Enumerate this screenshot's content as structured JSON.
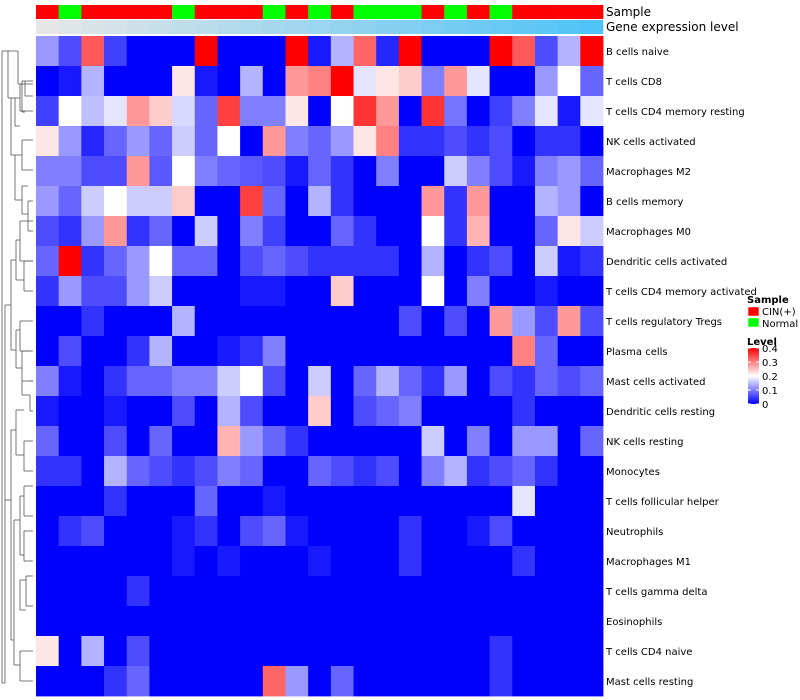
{
  "chart_data": {
    "type": "heatmap",
    "title": "",
    "colors": {
      "low": "#0000ff",
      "mid": "#ffffff",
      "high": "#ff0000",
      "cin": "#ff0000",
      "normal": "#00ff00",
      "gene_level": "#4fc3f7"
    },
    "annotation_rows": [
      "Sample",
      "Gene expression level"
    ],
    "rows": [
      "B cells naive",
      "T cells CD8",
      "T cells CD4 memory resting",
      "NK cells activated",
      "Macrophages M2",
      "B cells memory",
      "Macrophages M0",
      "Dendritic cells activated",
      "T cells CD4 memory activated",
      "T cells regulatory  Tregs",
      "Plasma cells",
      "Mast cells activated",
      "Dendritic cells resting",
      "NK cells resting",
      "Monocytes",
      "T cells follicular helper",
      "Neutrophils",
      "Macrophages M1",
      "T cells gamma delta",
      "Eosinophils",
      "T cells CD4 naive",
      "Mast cells resting"
    ],
    "sample_groups": [
      "CIN(+)",
      "Normal",
      "CIN(+)",
      "CIN(+)",
      "CIN(+)",
      "CIN(+)",
      "Normal",
      "CIN(+)",
      "CIN(+)",
      "CIN(+)",
      "Normal",
      "CIN(+)",
      "Normal",
      "CIN(+)",
      "Normal",
      "Normal",
      "Normal",
      "CIN(+)",
      "Normal",
      "CIN(+)",
      "Normal",
      "CIN(+)",
      "CIN(+)",
      "CIN(+)",
      "CIN(+)"
    ],
    "values": [
      [
        0.12,
        0.06,
        0.33,
        0.05,
        0,
        0,
        0,
        0.4,
        0,
        0,
        0,
        0.4,
        0.02,
        0.14,
        0.32,
        0.03,
        0.4,
        0,
        0,
        0,
        0.4,
        0.33,
        0.06,
        0.14,
        0.4
      ],
      [
        0,
        0.02,
        0.14,
        0,
        0,
        0,
        0.22,
        0.02,
        0,
        0.14,
        0,
        0.28,
        0.3,
        0.4,
        0.18,
        0.22,
        0.24,
        0.1,
        0.28,
        0.18,
        0,
        0,
        0.12,
        0.2,
        0.08
      ],
      [
        0.05,
        0.2,
        0.15,
        0.18,
        0.28,
        0.24,
        0.17,
        0.08,
        0.35,
        0.1,
        0.1,
        0.22,
        0,
        0.2,
        0.36,
        0.28,
        0,
        0.36,
        0.09,
        0,
        0.05,
        0.1,
        0.18,
        0.02,
        0.18
      ],
      [
        0.22,
        0.12,
        0.03,
        0.08,
        0.12,
        0.08,
        0.16,
        0.08,
        0.2,
        0,
        0.28,
        0.1,
        0.08,
        0.12,
        0.22,
        0.3,
        0.04,
        0.04,
        0.06,
        0.04,
        0.06,
        0,
        0.04,
        0.04,
        0
      ],
      [
        0.1,
        0.1,
        0.06,
        0.06,
        0.28,
        0.07,
        0.2,
        0.1,
        0.08,
        0.07,
        0.06,
        0.02,
        0.08,
        0.04,
        0,
        0.1,
        0,
        0,
        0.16,
        0.1,
        0.06,
        0.02,
        0.1,
        0.12,
        0.08
      ],
      [
        0.12,
        0.08,
        0.16,
        0.2,
        0.16,
        0.16,
        0.24,
        0,
        0,
        0.35,
        0.08,
        0,
        0.14,
        0.04,
        0,
        0,
        0,
        0.28,
        0.04,
        0.28,
        0,
        0,
        0.14,
        0.12,
        0
      ],
      [
        0.06,
        0.04,
        0.12,
        0.28,
        0.04,
        0.08,
        0,
        0.16,
        0,
        0.1,
        0.05,
        0,
        0,
        0.08,
        0.04,
        0,
        0,
        0.2,
        0.04,
        0.26,
        0,
        0,
        0.08,
        0.22,
        0.16
      ],
      [
        0.08,
        0.4,
        0.04,
        0.08,
        0.12,
        0.2,
        0.08,
        0.08,
        0,
        0.06,
        0.08,
        0.06,
        0.04,
        0.04,
        0.04,
        0.04,
        0,
        0.14,
        0,
        0.04,
        0.06,
        0,
        0.16,
        0.02,
        0.04
      ],
      [
        0.04,
        0.12,
        0.06,
        0.06,
        0.12,
        0.16,
        0,
        0,
        0,
        0.02,
        0.02,
        0,
        0,
        0.24,
        0,
        0,
        0,
        0.2,
        0,
        0.1,
        0,
        0,
        0.02,
        0,
        0
      ],
      [
        0,
        0,
        0.04,
        0,
        0,
        0,
        0.14,
        0,
        0,
        0,
        0,
        0,
        0,
        0,
        0,
        0,
        0.06,
        0,
        0.06,
        0,
        0.28,
        0.12,
        0.06,
        0.28,
        0.06
      ],
      [
        0,
        0.06,
        0,
        0,
        0.04,
        0.14,
        0,
        0,
        0.02,
        0.04,
        0.1,
        0,
        0,
        0,
        0,
        0,
        0,
        0,
        0,
        0,
        0,
        0.3,
        0.08,
        0,
        0
      ],
      [
        0.1,
        0.02,
        0,
        0.04,
        0.08,
        0.08,
        0.1,
        0.1,
        0.16,
        0.2,
        0.06,
        0,
        0.16,
        0,
        0.08,
        0.14,
        0.08,
        0.04,
        0.12,
        0,
        0.06,
        0.04,
        0.08,
        0.06,
        0.08
      ],
      [
        0.02,
        0,
        0,
        0.02,
        0,
        0,
        0.06,
        0,
        0.14,
        0.06,
        0,
        0,
        0.24,
        0,
        0.06,
        0.08,
        0.1,
        0,
        0,
        0,
        0,
        0.04,
        0,
        0,
        0
      ],
      [
        0.08,
        0,
        0,
        0.06,
        0,
        0.08,
        0,
        0,
        0.26,
        0.12,
        0.08,
        0.04,
        0,
        0,
        0,
        0,
        0,
        0.16,
        0,
        0.1,
        0,
        0.12,
        0.12,
        0,
        0.08
      ],
      [
        0.04,
        0.04,
        0,
        0.14,
        0.08,
        0.06,
        0.04,
        0.06,
        0.1,
        0.08,
        0,
        0,
        0.08,
        0.06,
        0.04,
        0.06,
        0,
        0.1,
        0.14,
        0.04,
        0.06,
        0.08,
        0.04,
        0,
        0
      ],
      [
        0,
        0,
        0,
        0.04,
        0,
        0,
        0,
        0.08,
        0,
        0,
        0.02,
        0,
        0,
        0,
        0,
        0,
        0,
        0,
        0,
        0,
        0,
        0.18,
        0,
        0,
        0
      ],
      [
        0,
        0.04,
        0.06,
        0,
        0,
        0,
        0.02,
        0.04,
        0,
        0.06,
        0.08,
        0.02,
        0,
        0,
        0,
        0,
        0.04,
        0,
        0,
        0.02,
        0.06,
        0,
        0,
        0,
        0
      ],
      [
        0,
        0,
        0,
        0,
        0,
        0,
        0.02,
        0,
        0.02,
        0,
        0,
        0,
        0.02,
        0,
        0,
        0,
        0.04,
        0,
        0,
        0,
        0,
        0.04,
        0,
        0,
        0
      ],
      [
        0,
        0,
        0,
        0,
        0.04,
        0,
        0,
        0,
        0,
        0,
        0,
        0,
        0,
        0,
        0,
        0,
        0,
        0,
        0,
        0,
        0,
        0,
        0,
        0,
        0
      ],
      [
        0,
        0,
        0,
        0,
        0,
        0,
        0,
        0,
        0,
        0,
        0,
        0,
        0,
        0,
        0,
        0,
        0,
        0,
        0,
        0,
        0,
        0,
        0,
        0,
        0
      ],
      [
        0.22,
        0,
        0.14,
        0,
        0.06,
        0,
        0,
        0,
        0,
        0,
        0,
        0,
        0,
        0,
        0,
        0,
        0,
        0,
        0,
        0,
        0.04,
        0,
        0,
        0,
        0
      ],
      [
        0,
        0,
        0,
        0.04,
        0.08,
        0,
        0,
        0,
        0,
        0,
        0.32,
        0.12,
        0,
        0.08,
        0,
        0,
        0,
        0,
        0,
        0,
        0.04,
        0,
        0,
        0,
        0
      ]
    ],
    "legend": {
      "sample_title": "Sample",
      "sample_entries": [
        "CIN(+)",
        "Normal"
      ],
      "level_title": "Level",
      "level_ticks": [
        "0.4",
        "0.3",
        "0.2",
        "0.1",
        "0"
      ]
    },
    "colorbar_range": [
      0,
      0.4
    ],
    "color_scale": [
      "blue",
      "white",
      "red"
    ],
    "dendrogram": "rows"
  }
}
